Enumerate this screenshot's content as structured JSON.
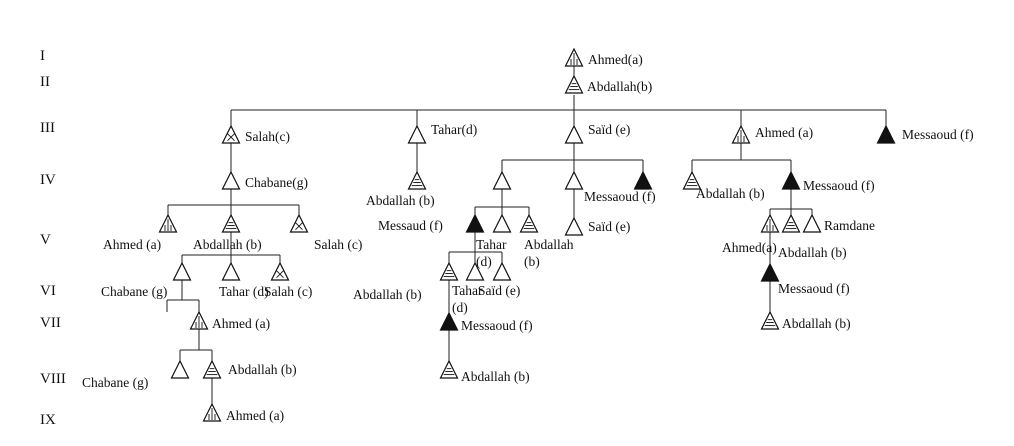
{
  "diagram": {
    "generations": [
      "I",
      "II",
      "III",
      "IV",
      "V",
      "VI",
      "VII",
      "VIII",
      "IX"
    ],
    "nodes": [
      {
        "id": "n1",
        "label": "Ahmed(a)",
        "fill": "vertical"
      },
      {
        "id": "n2",
        "label": "Abdallah(b)",
        "fill": "horizontal"
      },
      {
        "id": "n3",
        "label": "Salah(c)",
        "fill": "cross"
      },
      {
        "id": "n4",
        "label": "Tahar(d)",
        "fill": "none"
      },
      {
        "id": "n5",
        "label": "Saïd (e)",
        "fill": "none"
      },
      {
        "id": "n6",
        "label": "Ahmed (a)",
        "fill": "vertical"
      },
      {
        "id": "n7",
        "label": "Messaoud (f)",
        "fill": "solid"
      },
      {
        "id": "n8",
        "label": "Chabane(g)",
        "fill": "none"
      },
      {
        "id": "n9",
        "label": "Abdallah (b)",
        "fill": "horizontal"
      },
      {
        "id": "n10",
        "label": "",
        "fill": "none"
      },
      {
        "id": "n11",
        "label": "",
        "fill": "none"
      },
      {
        "id": "n12",
        "label": "Messaoud (f)",
        "fill": "solid"
      },
      {
        "id": "n13",
        "label": "Abdallah (b)",
        "fill": "horizontal"
      },
      {
        "id": "n14",
        "label": "Messaoud (f)",
        "fill": "solid"
      },
      {
        "id": "n15",
        "label": "Ahmed (a)",
        "fill": "vertical"
      },
      {
        "id": "n16",
        "label": "Abdallah (b)",
        "fill": "horizontal"
      },
      {
        "id": "n17",
        "label": "Salah (c)",
        "fill": "cross"
      },
      {
        "id": "n18",
        "label": "Messaud (f)",
        "fill": "solid"
      },
      {
        "id": "n19",
        "label": "Tahar (d)",
        "fill": "none"
      },
      {
        "id": "n20",
        "label": "Abdallah (b)",
        "fill": "horizontal"
      },
      {
        "id": "n21",
        "label": "Saïd (e)",
        "fill": "none"
      },
      {
        "id": "n22",
        "label": "Ahmed(a)",
        "fill": "vertical"
      },
      {
        "id": "n23",
        "label": "Abdallah (b)",
        "fill": "horizontal"
      },
      {
        "id": "n24",
        "label": "Ramdane",
        "fill": "none"
      },
      {
        "id": "n25",
        "label": "Chabane (g)",
        "fill": "none"
      },
      {
        "id": "n26",
        "label": "Tahar (d)",
        "fill": "none"
      },
      {
        "id": "n27",
        "label": "Salah (c)",
        "fill": "cross"
      },
      {
        "id": "n28",
        "label": "Abdallah (b)",
        "fill": "horizontal"
      },
      {
        "id": "n29",
        "label": "Tahar (d)",
        "fill": "none"
      },
      {
        "id": "n30",
        "label": "Saïd (e)",
        "fill": "none"
      },
      {
        "id": "n31",
        "label": "Messaoud (f)",
        "fill": "solid"
      },
      {
        "id": "n32",
        "label": "Abdallah (b)",
        "fill": "horizontal"
      },
      {
        "id": "n33",
        "label": "Ahmed (a)",
        "fill": "vertical"
      },
      {
        "id": "n34",
        "label": "Chabane (g)",
        "fill": "none"
      },
      {
        "id": "n35",
        "label": "Abdallah (b)",
        "fill": "horizontal"
      },
      {
        "id": "n36",
        "label": "Messaoud (f)",
        "fill": "solid"
      },
      {
        "id": "n37",
        "label": "Abdallah (b)",
        "fill": "horizontal"
      },
      {
        "id": "n38",
        "label": "Ahmed (a)",
        "fill": "vertical"
      }
    ]
  }
}
